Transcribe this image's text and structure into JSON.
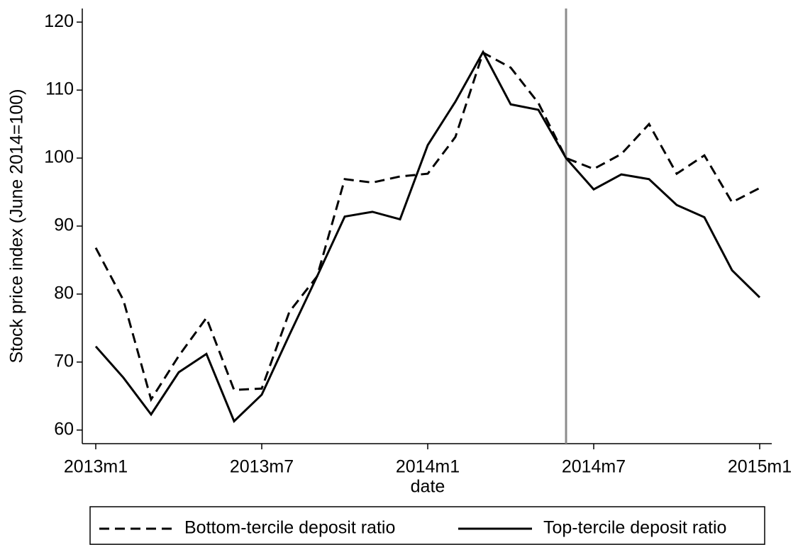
{
  "chart_data": {
    "type": "line",
    "y_label": "Stock price index (June 2014=100)",
    "x_label": "date",
    "categories": [
      "2013m1",
      null,
      null,
      null,
      null,
      null,
      "2013m7",
      null,
      null,
      null,
      null,
      null,
      "2014m1",
      null,
      null,
      null,
      null,
      null,
      "2014m7",
      null,
      null,
      null,
      null,
      null,
      "2015m1"
    ],
    "series": [
      {
        "name": "Bottom-tercile deposit ratio",
        "color": "#000000",
        "style": "dashed",
        "values": [
          86.8,
          79.1,
          64.5,
          70.9,
          76.5,
          65.9,
          66.1,
          77.4,
          82.6,
          96.9,
          96.4,
          97.3,
          97.7,
          103.1,
          115.5,
          113.3,
          108.1,
          100,
          98.4,
          100.6,
          105,
          97.7,
          100.4,
          93.5,
          95.6
        ]
      },
      {
        "name": "Top-tercile deposit ratio",
        "color": "#000000",
        "style": "solid",
        "values": [
          72.3,
          67.7,
          62.3,
          68.5,
          71.2,
          61.3,
          65.2,
          74,
          82.6,
          91.4,
          92.1,
          91,
          101.9,
          108.3,
          115.6,
          107.9,
          107.1,
          100,
          95.4,
          97.6,
          96.9,
          93.1,
          91.3,
          83.5,
          79.5
        ]
      }
    ],
    "vline_category_index": 17,
    "vline_color": "#8c8c8c",
    "ylim": [
      58,
      122
    ],
    "yticks": [
      60,
      70,
      80,
      90,
      100,
      110,
      120
    ],
    "legend": "bottom"
  }
}
